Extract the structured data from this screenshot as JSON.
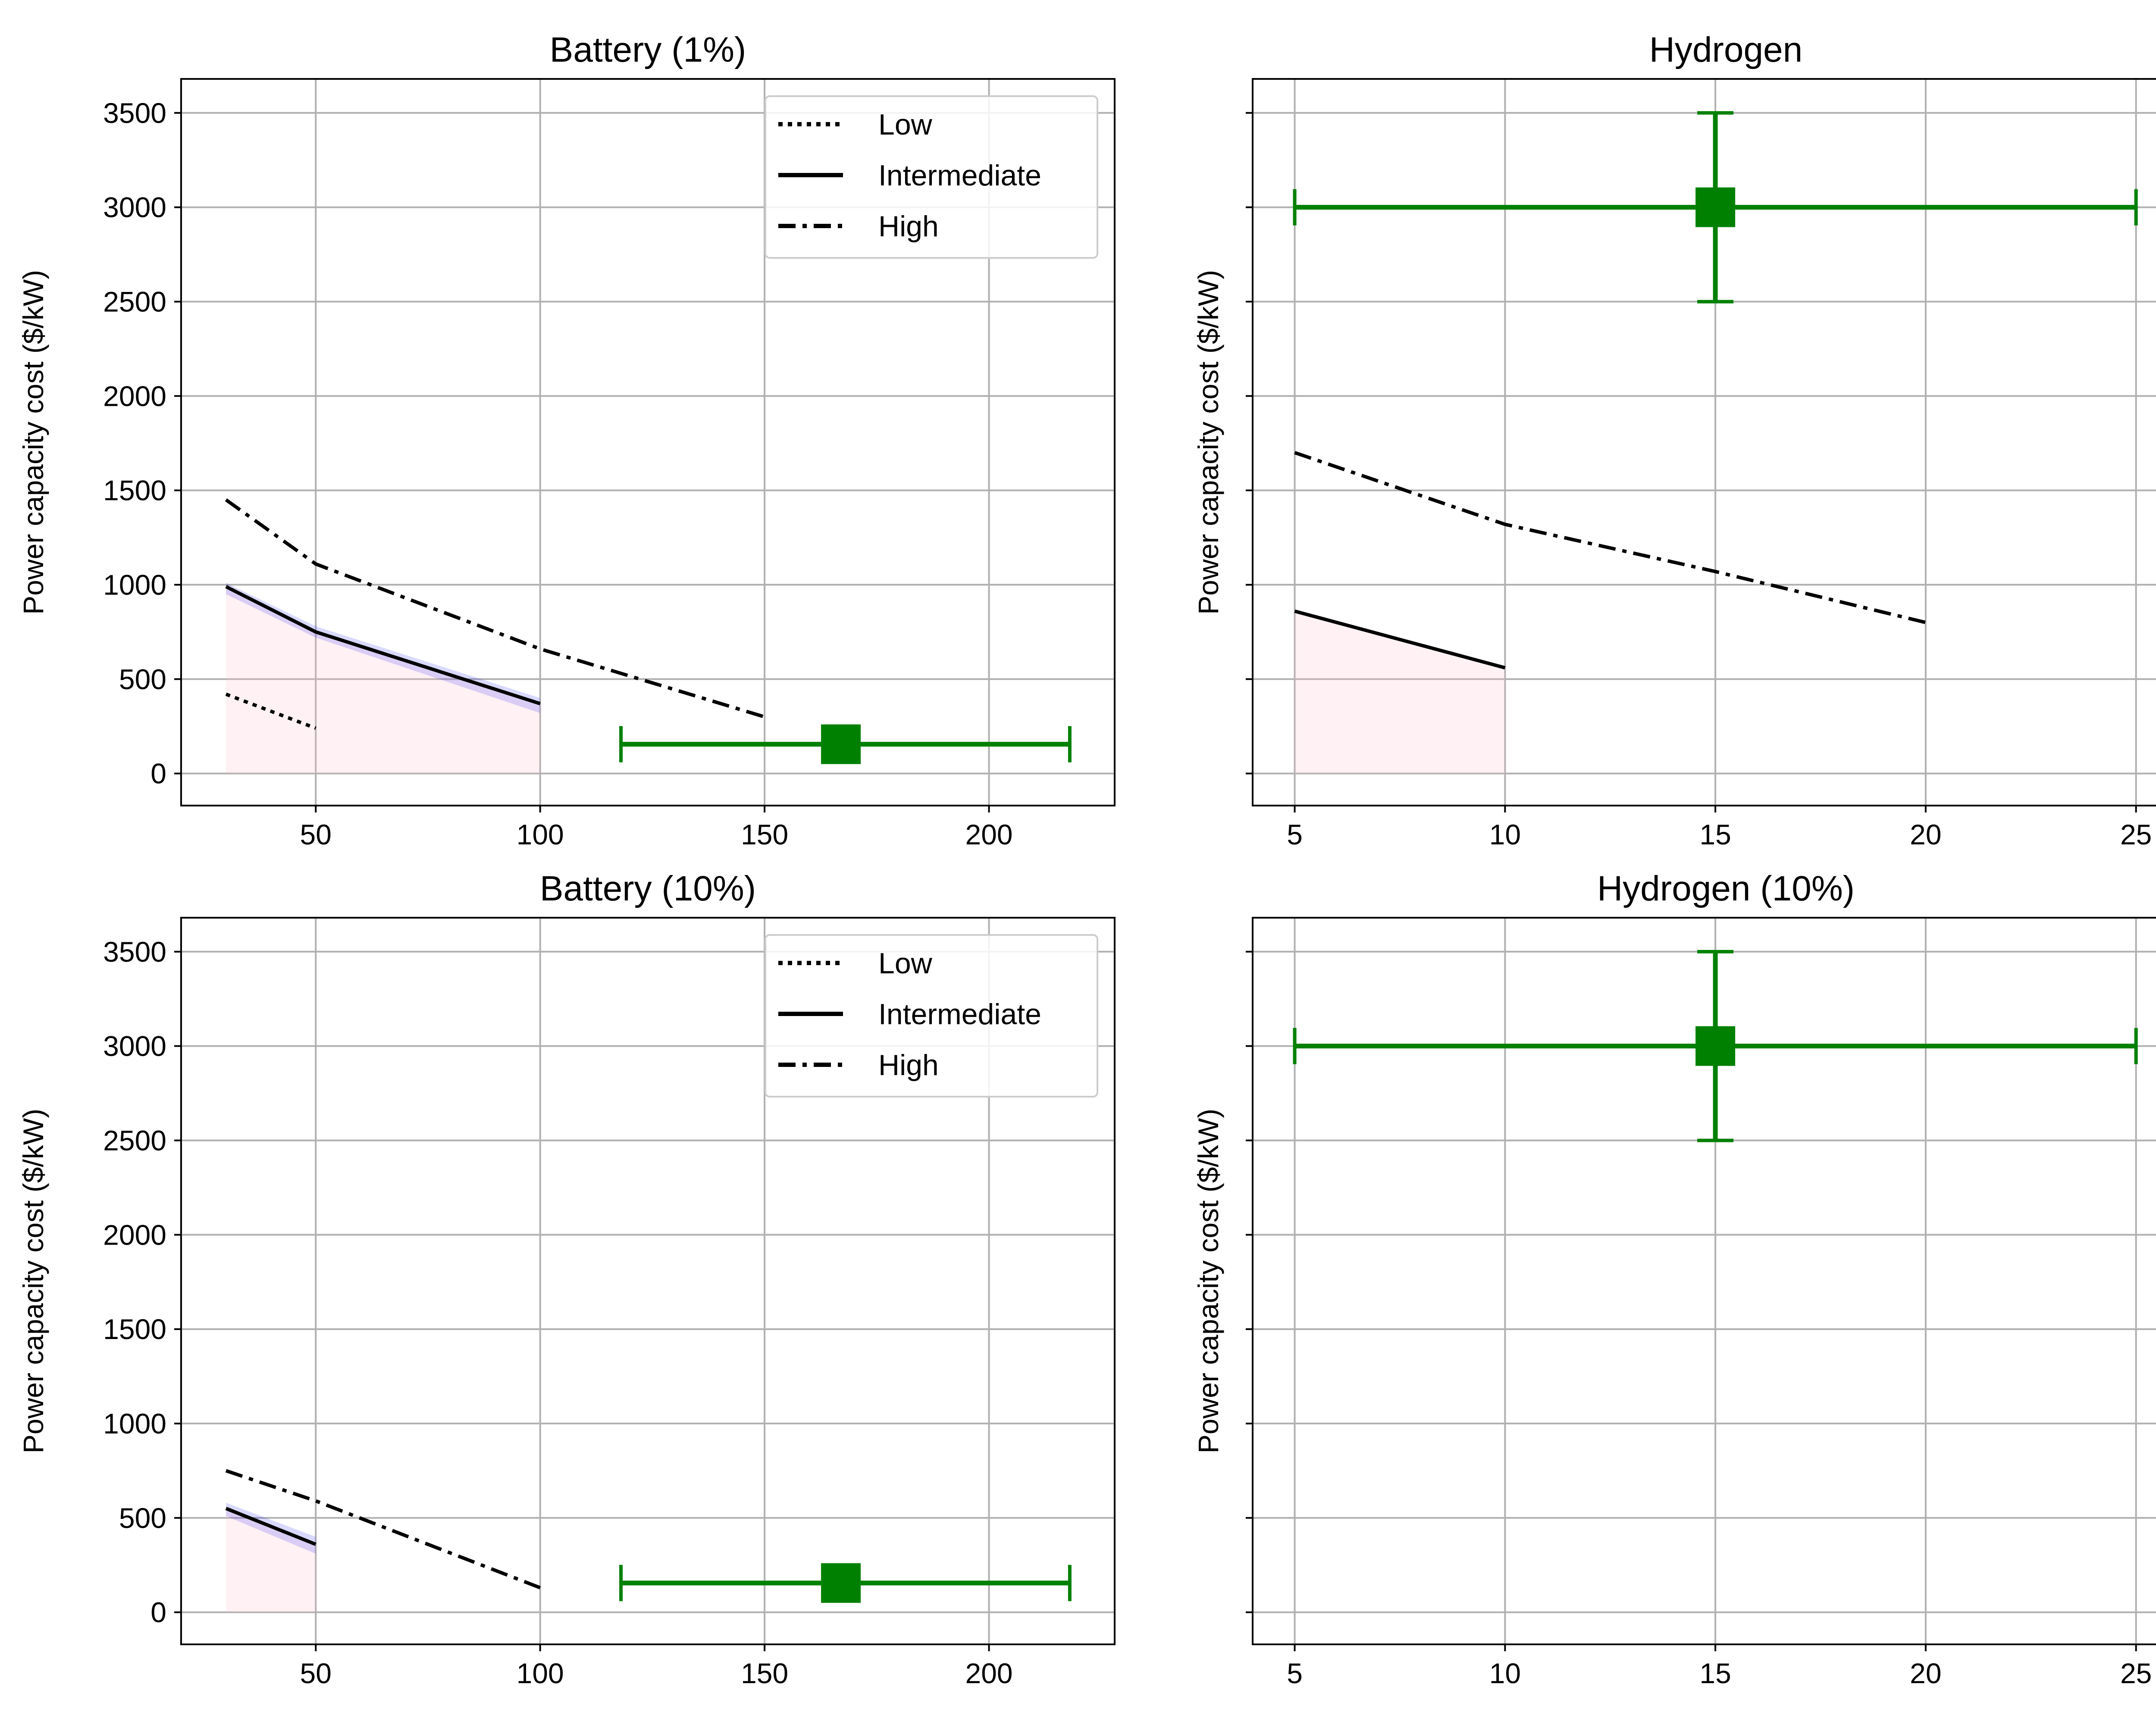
{
  "figure": {
    "colors": {
      "errorbar": "#008000",
      "lines": "#000000",
      "grid": "#b0b0b0",
      "fill_pink": "#ffc0cb",
      "fill_blue": "#0000ff"
    }
  },
  "chart_data": [
    {
      "type": "line",
      "title": "Battery (1%)",
      "xlabel": "",
      "ylabel": "Power capacity cost ($/kW)",
      "xlim": [
        20,
        228
      ],
      "ylim": [
        -170,
        3680
      ],
      "xticks": [
        50,
        100,
        150,
        200
      ],
      "yticks": [
        0,
        500,
        1000,
        1500,
        2000,
        2500,
        3000,
        3500
      ],
      "grid": true,
      "legend": {
        "placement": "top-right",
        "entries": [
          {
            "label": "Low",
            "style": "dotted"
          },
          {
            "label": "Intermediate",
            "style": "solid"
          },
          {
            "label": "High",
            "style": "dashdot"
          }
        ]
      },
      "series": [
        {
          "style": "dotted",
          "x": [
            30,
            50
          ],
          "y": [
            420,
            240
          ]
        },
        {
          "style": "solid",
          "x": [
            30,
            50,
            100
          ],
          "y": [
            990,
            750,
            370
          ]
        },
        {
          "style": "dashdot",
          "x": [
            30,
            50,
            100,
            150
          ],
          "y": [
            1450,
            1110,
            660,
            300
          ]
        }
      ],
      "shaded": {
        "x": [
          30,
          50,
          100
        ],
        "y": [
          990,
          750,
          370
        ]
      },
      "band": {
        "x": [
          30,
          50,
          100
        ],
        "y_low": [
          950,
          720,
          320
        ],
        "y_high": [
          1010,
          780,
          400
        ]
      },
      "errorbar": {
        "x": 167,
        "y": 155,
        "xerr": [
          118,
          218
        ]
      }
    },
    {
      "type": "line",
      "title": "Hydrogen",
      "xlabel": "",
      "ylabel": "Power capacity cost ($/kW)",
      "xlim": [
        4,
        26.5
      ],
      "ylim": [
        -170,
        3680
      ],
      "xticks": [
        5,
        10,
        15,
        20,
        25
      ],
      "yticks": [
        0,
        500,
        1000,
        1500,
        2000,
        2500,
        3000,
        3500
      ],
      "show_ytick_labels": false,
      "grid": true,
      "series": [
        {
          "style": "solid",
          "x": [
            5,
            10
          ],
          "y": [
            860,
            560
          ]
        },
        {
          "style": "dashdot",
          "x": [
            5,
            10,
            15,
            20
          ],
          "y": [
            1700,
            1320,
            1070,
            800
          ]
        }
      ],
      "shaded": {
        "x": [
          5,
          10
        ],
        "y": [
          860,
          560
        ]
      },
      "errorbar": {
        "x": 15,
        "y": 3000,
        "xerr": [
          5,
          25
        ],
        "yerr": [
          2500,
          3500
        ]
      }
    },
    {
      "type": "line",
      "title": "Battery (10%)",
      "xlabel": "",
      "ylabel": "Power capacity cost ($/kW)",
      "xlim": [
        20,
        228
      ],
      "ylim": [
        -170,
        3680
      ],
      "xticks": [
        50,
        100,
        150,
        200
      ],
      "yticks": [
        0,
        500,
        1000,
        1500,
        2000,
        2500,
        3000,
        3500
      ],
      "grid": true,
      "legend": {
        "placement": "top-right",
        "entries": [
          {
            "label": "Low",
            "style": "dotted"
          },
          {
            "label": "Intermediate",
            "style": "solid"
          },
          {
            "label": "High",
            "style": "dashdot"
          }
        ]
      },
      "series": [
        {
          "style": "solid",
          "x": [
            30,
            50
          ],
          "y": [
            550,
            360
          ]
        },
        {
          "style": "dashdot",
          "x": [
            30,
            50,
            100
          ],
          "y": [
            750,
            590,
            130
          ]
        }
      ],
      "shaded": {
        "x": [
          30,
          50
        ],
        "y": [
          550,
          360
        ]
      },
      "band": {
        "x": [
          30,
          50
        ],
        "y_low": [
          510,
          310
        ],
        "y_high": [
          580,
          400
        ]
      },
      "errorbar": {
        "x": 167,
        "y": 155,
        "xerr": [
          118,
          218
        ]
      }
    },
    {
      "type": "line",
      "title": "Hydrogen (10%)",
      "xlabel": "",
      "ylabel": "Power capacity cost ($/kW)",
      "xlim": [
        4,
        26.5
      ],
      "ylim": [
        -170,
        3680
      ],
      "xticks": [
        5,
        10,
        15,
        20,
        25
      ],
      "yticks": [
        0,
        500,
        1000,
        1500,
        2000,
        2500,
        3000,
        3500
      ],
      "show_ytick_labels": false,
      "grid": true,
      "series": [],
      "errorbar": {
        "x": 15,
        "y": 3000,
        "xerr": [
          5,
          25
        ],
        "yerr": [
          2500,
          3500
        ]
      }
    }
  ]
}
